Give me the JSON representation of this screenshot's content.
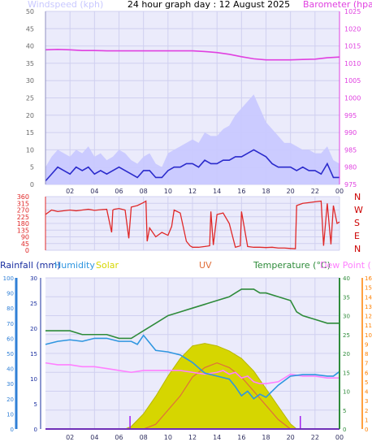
{
  "header": {
    "title": "24 hour graph day : 12 August 2025",
    "windspeed_label": "Windspeed (kph)",
    "barometer_label": "Barometer (hpa)"
  },
  "colors": {
    "background": "#ffffff",
    "plot_background": "#ebebfb",
    "grid": "#d0d0f0",
    "axis_text": "#6b6b6b",
    "wind_gust": "#c8c8ff",
    "wind_avg": "#2b2bcc",
    "barometer": "#e040e0",
    "direction": "#e02828",
    "rain": "#2f7fd6",
    "humidity": "#2f96e0",
    "solar": "#d6d600",
    "uv": "#e06f3a",
    "temperature": "#2e8b3a",
    "dew_point": "#ff80ff",
    "dir_labels": "#cc0000",
    "uv_axis": "#ff8000",
    "marker": "#a020f0"
  },
  "x_ticks": [
    "02",
    "04",
    "06",
    "08",
    "10",
    "12",
    "14",
    "16",
    "18",
    "20",
    "22",
    "00"
  ],
  "chart_data": [
    {
      "type": "line",
      "title": "24 hour graph day : 12 August 2025",
      "x_unit": "hour",
      "x_range": [
        0,
        24
      ],
      "left_axis": {
        "label": "Windspeed (kph)",
        "range": [
          0,
          50
        ],
        "ticks": [
          0,
          5,
          10,
          15,
          20,
          25,
          30,
          35,
          40,
          45,
          50
        ]
      },
      "right_axis": {
        "label": "Barometer (hpa)",
        "range": [
          975,
          1025
        ],
        "ticks": [
          975,
          980,
          985,
          990,
          995,
          1000,
          1005,
          1010,
          1015,
          1020,
          1025
        ]
      },
      "series": [
        {
          "name": "Wind gust",
          "axis": "left",
          "x": [
            0,
            0.5,
            1,
            1.5,
            2,
            2.5,
            3,
            3.5,
            4,
            4.5,
            5,
            5.5,
            6,
            6.5,
            7,
            7.5,
            8,
            8.5,
            9,
            9.5,
            10,
            10.5,
            11,
            11.5,
            12,
            12.5,
            13,
            13.5,
            14,
            14.5,
            15,
            15.5,
            16,
            16.5,
            17,
            17.5,
            18,
            18.5,
            19,
            19.5,
            20,
            20.5,
            21,
            21.5,
            22,
            22.5,
            23,
            23.5,
            24
          ],
          "values": [
            5,
            8,
            10,
            9,
            8,
            10,
            9,
            11,
            8,
            9,
            7,
            8,
            10,
            9,
            7,
            6,
            8,
            9,
            6,
            5,
            9,
            10,
            11,
            12,
            13,
            12,
            15,
            14,
            14,
            16,
            17,
            20,
            22,
            24,
            26,
            22,
            18,
            16,
            14,
            12,
            12,
            11,
            10,
            10,
            9,
            9,
            11,
            7,
            6
          ]
        },
        {
          "name": "Wind average",
          "axis": "left",
          "x": [
            0,
            0.5,
            1,
            1.5,
            2,
            2.5,
            3,
            3.5,
            4,
            4.5,
            5,
            5.5,
            6,
            6.5,
            7,
            7.5,
            8,
            8.5,
            9,
            9.5,
            10,
            10.5,
            11,
            11.5,
            12,
            12.5,
            13,
            13.5,
            14,
            14.5,
            15,
            15.5,
            16,
            16.5,
            17,
            17.5,
            18,
            18.5,
            19,
            19.5,
            20,
            20.5,
            21,
            21.5,
            22,
            22.5,
            23,
            23.5,
            24
          ],
          "values": [
            1,
            3,
            5,
            4,
            3,
            5,
            4,
            5,
            3,
            4,
            3,
            4,
            5,
            4,
            3,
            2,
            4,
            4,
            2,
            2,
            4,
            5,
            5,
            6,
            6,
            5,
            7,
            6,
            6,
            7,
            7,
            8,
            8,
            9,
            10,
            9,
            8,
            6,
            5,
            5,
            5,
            4,
            5,
            4,
            4,
            3,
            6,
            2,
            2
          ]
        },
        {
          "name": "Barometer",
          "axis": "right",
          "x": [
            0,
            1,
            2,
            3,
            4,
            5,
            6,
            7,
            8,
            9,
            10,
            11,
            12,
            13,
            14,
            15,
            16,
            17,
            18,
            19,
            20,
            21,
            22,
            23,
            24
          ],
          "values": [
            1013.9,
            1014.0,
            1013.9,
            1013.7,
            1013.7,
            1013.6,
            1013.6,
            1013.6,
            1013.6,
            1013.6,
            1013.6,
            1013.6,
            1013.6,
            1013.4,
            1013.1,
            1012.6,
            1011.9,
            1011.3,
            1011.0,
            1011.0,
            1011.0,
            1011.1,
            1011.2,
            1011.6,
            1011.8
          ]
        }
      ]
    },
    {
      "type": "line",
      "title": "",
      "x_unit": "hour",
      "x_range": [
        0,
        24
      ],
      "left_axis": {
        "label": "",
        "range": [
          0,
          360
        ],
        "ticks": [
          0,
          45,
          90,
          135,
          180,
          225,
          270,
          315,
          360
        ]
      },
      "right_labels": [
        "N",
        "W",
        "S",
        "E",
        "N"
      ],
      "series": [
        {
          "name": "Wind direction",
          "x": [
            0,
            0.5,
            1,
            1.5,
            2,
            2.5,
            3,
            3.5,
            4,
            4.5,
            5,
            5.4,
            5.5,
            5.6,
            6,
            6.5,
            6.8,
            7,
            7.5,
            8,
            8.2,
            8.3,
            8.5,
            9,
            9.5,
            10,
            10.3,
            10.5,
            11,
            11.5,
            11.8,
            12,
            12.5,
            13,
            13.4,
            13.5,
            13.7,
            14,
            14.5,
            15,
            15.5,
            15.9,
            16,
            16.5,
            17,
            17.5,
            18,
            18.5,
            19,
            19.5,
            20,
            20.4,
            20.5,
            21,
            21.5,
            22,
            22.5,
            22.7,
            23,
            23.3,
            23.5,
            23.8,
            24
          ],
          "values": [
            240,
            270,
            260,
            265,
            270,
            265,
            270,
            275,
            268,
            272,
            275,
            120,
            270,
            275,
            280,
            270,
            80,
            290,
            300,
            320,
            330,
            60,
            150,
            90,
            120,
            100,
            160,
            270,
            250,
            60,
            30,
            20,
            20,
            25,
            30,
            260,
            35,
            240,
            250,
            180,
            20,
            30,
            260,
            25,
            20,
            20,
            18,
            20,
            15,
            15,
            12,
            10,
            300,
            315,
            320,
            325,
            330,
            30,
            315,
            40,
            300,
            180,
            190
          ]
        }
      ]
    },
    {
      "type": "line",
      "title": "",
      "x_unit": "hour",
      "x_range": [
        0,
        24
      ],
      "legend": [
        "Rainfall (mm)",
        "Humidity",
        "Solar",
        "UV",
        "Temperature (°C)",
        "Dew Point (°C)"
      ],
      "axes": {
        "rainfall_humidity": {
          "range": [
            0,
            100
          ],
          "ticks": [
            0,
            10,
            20,
            30,
            40,
            50,
            60,
            70,
            80,
            90,
            100
          ]
        },
        "solar": {
          "range": [
            0,
            30
          ],
          "ticks": [
            0,
            5,
            10,
            15,
            20,
            25,
            30
          ]
        },
        "temperature": {
          "range": [
            0,
            40
          ],
          "ticks": [
            0,
            5,
            10,
            15,
            20,
            25,
            30,
            35,
            40
          ]
        },
        "uv": {
          "range": [
            0,
            16
          ],
          "ticks": [
            0,
            1,
            2,
            3,
            4,
            5,
            6,
            7,
            8,
            9,
            10,
            11,
            12,
            13,
            14,
            15,
            16
          ]
        }
      },
      "series": [
        {
          "name": "Humidity",
          "axis": "rainfall_humidity",
          "x": [
            0,
            1,
            2,
            3,
            4,
            5,
            6,
            7,
            7.5,
            8,
            9,
            10,
            11,
            12,
            13,
            14,
            15,
            15.5,
            16,
            16.5,
            17,
            17.5,
            18,
            19,
            20,
            21,
            22,
            23,
            23.5,
            24
          ],
          "values": [
            56,
            58,
            59,
            58,
            60,
            60,
            58,
            58,
            56,
            62,
            52,
            51,
            49,
            44,
            37,
            35,
            33,
            28,
            22,
            25,
            20,
            23,
            21,
            29,
            35,
            36,
            36,
            35,
            35,
            38
          ]
        },
        {
          "name": "Temperature",
          "axis": "temperature",
          "x": [
            0,
            1,
            2,
            3,
            4,
            5,
            6,
            7,
            7.5,
            8,
            9,
            10,
            11,
            12,
            13,
            14,
            15,
            15.5,
            16,
            16.5,
            17,
            17.5,
            18,
            19,
            20,
            20.5,
            21,
            22,
            23,
            23.5,
            24
          ],
          "values": [
            26,
            26,
            26,
            25,
            25,
            25,
            24,
            24,
            25,
            26,
            28,
            30,
            31,
            32,
            33,
            34,
            35,
            36,
            37,
            37,
            37,
            36,
            36,
            35,
            34,
            31,
            30,
            29,
            28,
            28,
            28
          ]
        },
        {
          "name": "Dew Point",
          "axis": "temperature",
          "x": [
            0,
            1,
            2,
            3,
            4,
            5,
            6,
            7,
            8,
            9,
            10,
            11,
            12,
            13,
            14,
            14.5,
            15,
            15.5,
            16,
            16.5,
            17,
            17.5,
            18,
            19,
            20,
            21,
            22,
            23,
            24
          ],
          "values": [
            17.5,
            17.0,
            17.0,
            16.5,
            16.5,
            16.0,
            15.5,
            15.0,
            15.5,
            15.5,
            15.5,
            15.5,
            15.0,
            14.5,
            15.0,
            15.5,
            14.5,
            15.0,
            13.5,
            14.0,
            12.5,
            12.0,
            12.0,
            12.5,
            14.5,
            14.0,
            14.0,
            13.5,
            13.5
          ]
        },
        {
          "name": "Solar",
          "axis": "solar",
          "x": [
            6.5,
            7,
            8,
            9,
            10,
            11,
            12,
            13,
            14,
            15,
            16,
            17,
            18,
            19,
            20,
            20.5
          ],
          "values": [
            0,
            0.5,
            3,
            6.5,
            10.5,
            14,
            16.5,
            17,
            16.5,
            15.5,
            14,
            11.5,
            8,
            4.5,
            1,
            0
          ]
        },
        {
          "name": "UV",
          "axis": "uv",
          "x": [
            7,
            8,
            9,
            10,
            11,
            12,
            13,
            14,
            15,
            16,
            17,
            18,
            19,
            20
          ],
          "values": [
            0,
            0,
            0.5,
            2,
            3.5,
            5.5,
            6.5,
            7,
            6.5,
            5.5,
            4,
            2.5,
            1,
            0
          ]
        },
        {
          "name": "Rainfall",
          "axis": "rainfall_humidity",
          "x": [
            0,
            24
          ],
          "values": [
            0,
            0
          ]
        }
      ]
    }
  ]
}
